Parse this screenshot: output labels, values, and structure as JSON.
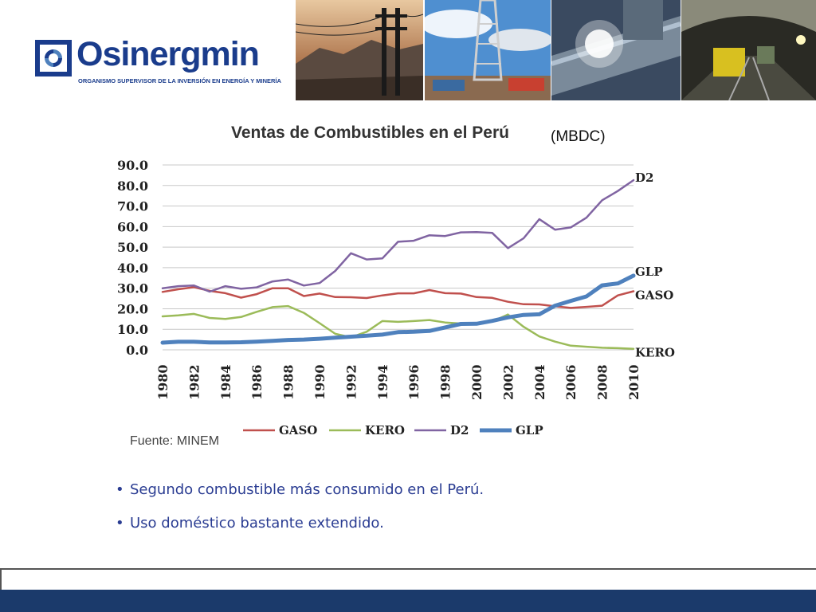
{
  "header": {
    "brand": "Osinergmin",
    "subtitle": "ORGANISMO SUPERVISOR DE LA INVERSIÓN EN ENERGÍA Y MINERÍA",
    "photos": [
      "power-lines-photo",
      "oil-rig-photo",
      "welding-pipe-photo",
      "mine-tunnel-photo"
    ]
  },
  "chart_data": {
    "type": "line",
    "title": "Ventas de Combustibles  en el Perú",
    "unit": "(MBDC)",
    "x": [
      1980,
      1981,
      1982,
      1983,
      1984,
      1985,
      1986,
      1987,
      1988,
      1989,
      1990,
      1991,
      1992,
      1993,
      1994,
      1995,
      1996,
      1997,
      1998,
      1999,
      2000,
      2001,
      2002,
      2003,
      2004,
      2005,
      2006,
      2007,
      2008,
      2009,
      2010
    ],
    "x_tick_labels": [
      "1980",
      "1982",
      "1984",
      "1986",
      "1988",
      "1990",
      "1992",
      "1994",
      "1996",
      "1998",
      "2000",
      "2002",
      "2004",
      "2006",
      "2008",
      "2010"
    ],
    "y_tick_labels": [
      "90.0",
      "80.0",
      "70.0",
      "60.0",
      "50.0",
      "40.0",
      "30.0",
      "20.0",
      "10.0",
      "0.0"
    ],
    "ylim": [
      0,
      90
    ],
    "grid": true,
    "legend_position": "bottom",
    "series": [
      {
        "name": "GASO",
        "color": "#c0504d",
        "width": 2.5,
        "values": [
          28.2,
          29.5,
          30.5,
          28.7,
          27.6,
          25.4,
          27.1,
          30.0,
          30.0,
          26.2,
          27.4,
          25.7,
          25.6,
          25.2,
          26.5,
          27.5,
          27.5,
          29.1,
          27.6,
          27.4,
          25.7,
          25.3,
          23.4,
          22.2,
          22.1,
          21.2,
          20.4,
          20.9,
          21.5,
          26.5,
          28.5
        ]
      },
      {
        "name": "KERO",
        "color": "#9bbb59",
        "width": 2.5,
        "values": [
          16.3,
          16.8,
          17.5,
          15.5,
          15.0,
          16.0,
          18.5,
          20.8,
          21.3,
          18.0,
          13.0,
          7.8,
          6.1,
          8.8,
          14.0,
          13.6,
          14.0,
          14.5,
          13.3,
          12.8,
          13.0,
          13.8,
          17.2,
          11.2,
          6.5,
          4.0,
          2.0,
          1.5,
          1.0,
          0.8,
          0.5
        ]
      },
      {
        "name": "D2",
        "color": "#8064a2",
        "width": 2.5,
        "values": [
          30.0,
          31.0,
          31.3,
          28.3,
          31.0,
          29.7,
          30.4,
          33.3,
          34.2,
          31.3,
          32.5,
          38.4,
          47.0,
          44.0,
          44.5,
          52.6,
          53.1,
          55.8,
          55.4,
          57.2,
          57.3,
          56.9,
          49.5,
          54.3,
          63.6,
          58.5,
          59.6,
          64.3,
          72.8,
          77.3,
          82.6
        ]
      },
      {
        "name": "GLP",
        "color": "#4f81bd",
        "width": 5,
        "values": [
          3.5,
          3.9,
          3.9,
          3.6,
          3.6,
          3.7,
          4.0,
          4.4,
          4.8,
          5.0,
          5.4,
          5.9,
          6.4,
          6.9,
          7.4,
          8.6,
          8.8,
          9.2,
          10.9,
          12.6,
          12.7,
          14.1,
          15.8,
          17.0,
          17.3,
          21.5,
          23.8,
          26.0,
          31.4,
          32.3,
          36.1
        ]
      }
    ],
    "end_labels": [
      {
        "series": "D2",
        "text": "D2"
      },
      {
        "series": "GLP",
        "text": "GLP"
      },
      {
        "series": "GASO",
        "text": "GASO"
      },
      {
        "series": "KERO",
        "text": "KERO"
      }
    ]
  },
  "source": "Fuente: MINEM",
  "bullets": [
    "Segundo combustible más consumido en el Perú.",
    "Uso doméstico bastante extendido."
  ]
}
